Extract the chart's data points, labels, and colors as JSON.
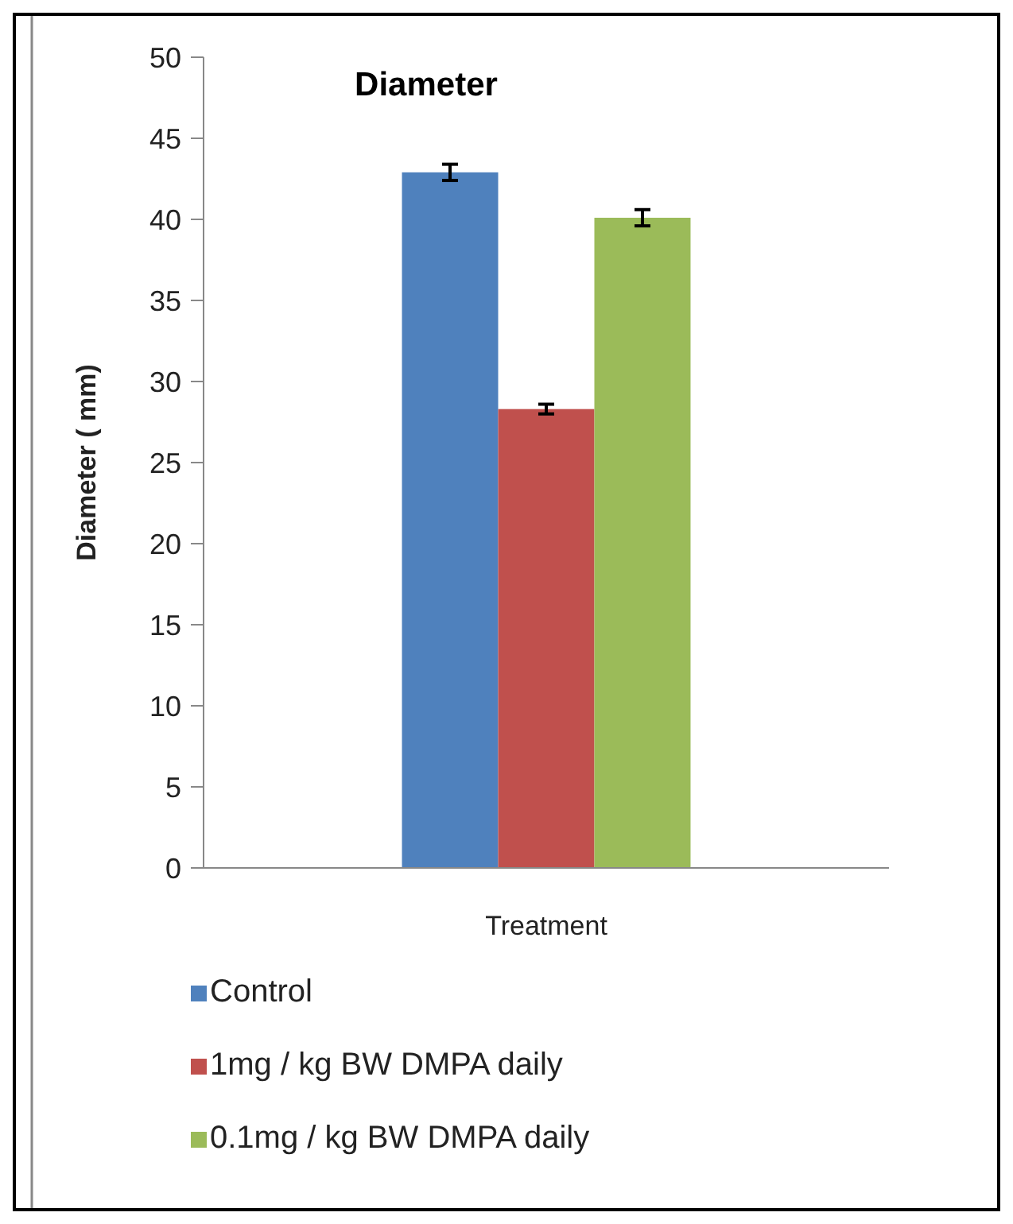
{
  "chart_data": {
    "type": "bar",
    "title": "Diameter",
    "xlabel": "Treatment",
    "ylabel": "Diameter ( mm)",
    "categories": [
      null
    ],
    "series": [
      {
        "name": "Control",
        "color": "#4f81bd",
        "values": [
          42.9
        ],
        "errors": [
          0.5
        ]
      },
      {
        "name": "1mg / kg BW DMPA daily",
        "color": "#c0504d",
        "values": [
          28.3
        ],
        "errors": [
          0.3
        ]
      },
      {
        "name": "0.1mg / kg BW DMPA daily",
        "color": "#9bbb59",
        "values": [
          40.1
        ],
        "errors": [
          0.5
        ]
      }
    ],
    "ylim": [
      0,
      50
    ],
    "yticks": [
      0,
      5,
      10,
      15,
      20,
      25,
      30,
      35,
      40,
      45,
      50
    ],
    "grid": false,
    "legend": "bottom"
  }
}
